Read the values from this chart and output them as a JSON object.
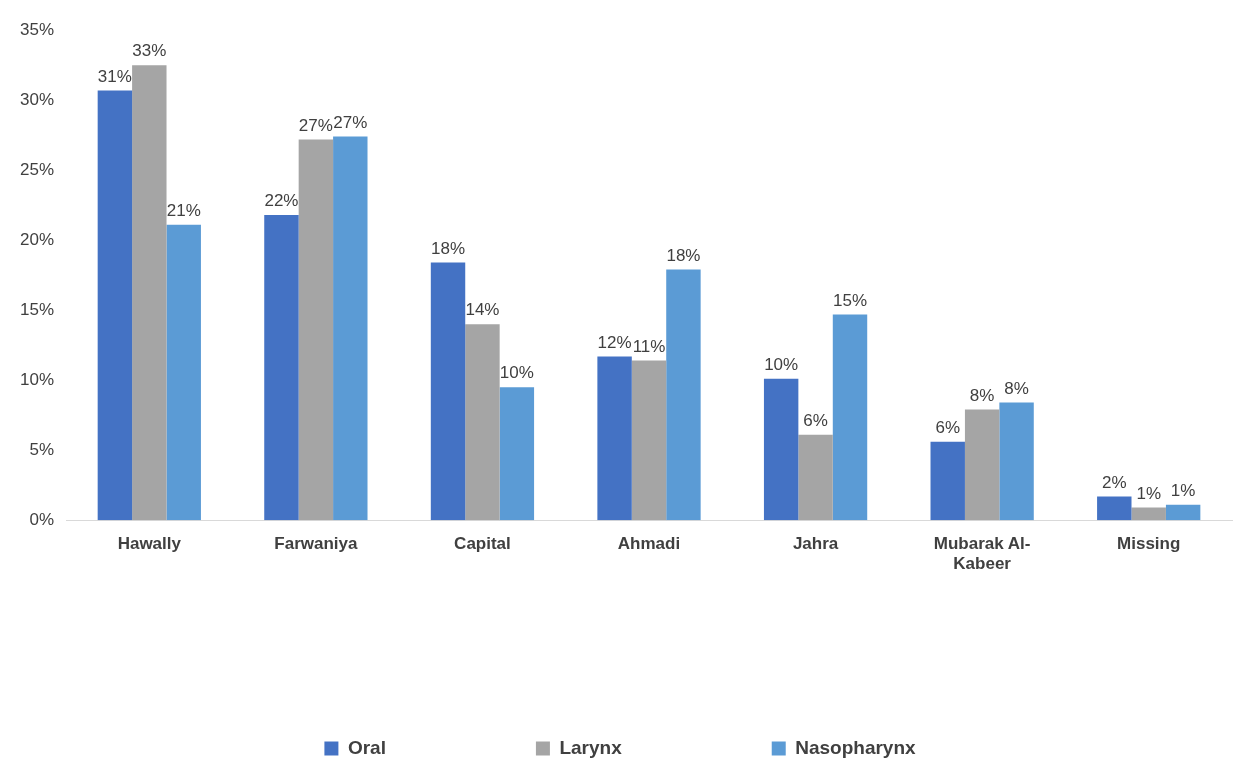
{
  "chart_data": {
    "type": "bar",
    "categories": [
      "Hawally",
      "Farwaniya",
      "Capital",
      "Ahmadi",
      "Jahra",
      "Mubarak Al-Kabeer",
      "Missing"
    ],
    "series": [
      {
        "name": "Oral",
        "color": "#4472c4",
        "values": [
          30.7,
          21.8,
          18.4,
          11.7,
          10.1,
          5.6,
          1.7
        ],
        "value_labels": [
          "31%",
          "22%",
          "18%",
          "12%",
          "10%",
          "6%",
          "2%"
        ]
      },
      {
        "name": "Larynx",
        "color": "#a5a5a5",
        "values": [
          32.5,
          27.2,
          14.0,
          11.4,
          6.1,
          7.9,
          0.9
        ],
        "value_labels": [
          "33%",
          "27%",
          "14%",
          "11%",
          "6%",
          "8%",
          "1%"
        ]
      },
      {
        "name": "Nasopharynx",
        "color": "#5b9bd5",
        "values": [
          21.1,
          27.4,
          9.5,
          17.9,
          14.7,
          8.4,
          1.1
        ],
        "value_labels": [
          "21%",
          "27%",
          "10%",
          "18%",
          "15%",
          "8%",
          "1%"
        ]
      }
    ],
    "ylim": [
      0,
      35
    ],
    "yticks": [
      {
        "value": 0,
        "label": "0%"
      },
      {
        "value": 5,
        "label": "5%"
      },
      {
        "value": 10,
        "label": "10%"
      },
      {
        "value": 15,
        "label": "15%"
      },
      {
        "value": 20,
        "label": "20%"
      },
      {
        "value": 25,
        "label": "25%"
      },
      {
        "value": 30,
        "label": "30%"
      },
      {
        "value": 35,
        "label": "35%"
      }
    ],
    "grid": false,
    "legend": "bottom"
  }
}
